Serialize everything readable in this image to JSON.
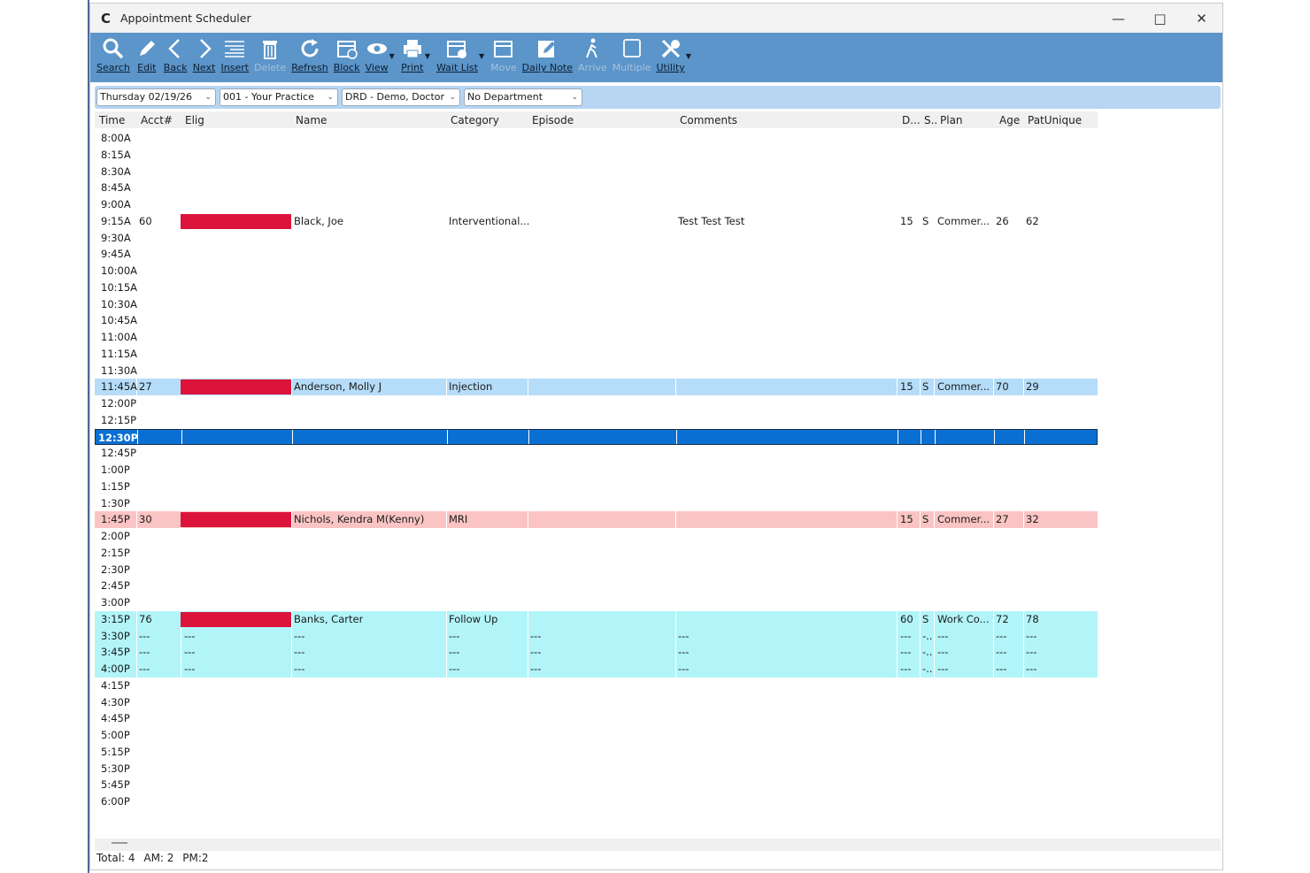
{
  "window": {
    "title": "Appointment Scheduler",
    "controls": [
      "minimize",
      "maximize",
      "close"
    ]
  },
  "toolbar": {
    "items": [
      {
        "label": "Search",
        "icon": "search-icon",
        "enabled": true
      },
      {
        "label": "Edit",
        "icon": "pencil-icon",
        "enabled": true
      },
      {
        "label": "Back",
        "icon": "chevron-left-icon",
        "enabled": true
      },
      {
        "label": "Next",
        "icon": "chevron-right-icon",
        "enabled": true
      },
      {
        "label": "Insert",
        "icon": "insert-lines-icon",
        "enabled": true
      },
      {
        "label": "Delete",
        "icon": "trash-icon",
        "enabled": false
      },
      {
        "label": "Refresh",
        "icon": "refresh-icon",
        "enabled": true
      },
      {
        "label": "Block",
        "icon": "calendar-block-icon",
        "enabled": true
      },
      {
        "label": "View",
        "icon": "eye-icon",
        "enabled": true,
        "dropdown": true
      },
      {
        "label": "Print",
        "icon": "printer-icon",
        "enabled": true,
        "dropdown": true
      },
      {
        "label": "Wait List",
        "icon": "calendar-clock-icon",
        "enabled": true,
        "dropdown": true
      },
      {
        "label": "Move",
        "icon": "calendar-move-icon",
        "enabled": false
      },
      {
        "label": "Daily Note",
        "icon": "note-edit-icon",
        "enabled": true
      },
      {
        "label": "Arrive",
        "icon": "walking-person-icon",
        "enabled": false
      },
      {
        "label": "Multiple",
        "icon": "multiple-pages-icon",
        "enabled": false
      },
      {
        "label": "Utility",
        "icon": "tools-icon",
        "enabled": true,
        "dropdown": true
      }
    ]
  },
  "filters": {
    "date": "Thursday 02/19/26",
    "practice": "001 - Your Practice",
    "provider": "DRD - Demo, Doctor",
    "department": "No Department"
  },
  "columns": [
    "Time",
    "Acct#",
    "Elig",
    "Name",
    "Category",
    "Episode",
    "Comments",
    "D...",
    "S..",
    "Plan",
    "Age",
    "PatUnique"
  ],
  "rows": [
    {
      "time": "8:00A"
    },
    {
      "time": "8:15A"
    },
    {
      "time": "8:30A"
    },
    {
      "time": "8:45A"
    },
    {
      "time": "9:00A"
    },
    {
      "time": "9:15A",
      "acct": "60",
      "elig": true,
      "name": "Black, Joe",
      "category": "Interventional...",
      "episode": "",
      "comments": "Test Test Test",
      "d": "15",
      "s": "S",
      "plan": "Commer...",
      "age": "26",
      "pat": "62",
      "style": "plain"
    },
    {
      "time": "9:30A"
    },
    {
      "time": "9:45A"
    },
    {
      "time": "10:00A"
    },
    {
      "time": "10:15A"
    },
    {
      "time": "10:30A"
    },
    {
      "time": "10:45A"
    },
    {
      "time": "11:00A"
    },
    {
      "time": "11:15A"
    },
    {
      "time": "11:30A"
    },
    {
      "time": "11:45A",
      "acct": "27",
      "elig": true,
      "name": "Anderson, Molly J",
      "category": "Injection",
      "episode": "",
      "comments": "",
      "d": "15",
      "s": "S",
      "plan": "Commer...",
      "age": "70",
      "pat": "29",
      "style": "blue"
    },
    {
      "time": "12:00P"
    },
    {
      "time": "12:15P"
    },
    {
      "time": "12:30P",
      "style": "sel"
    },
    {
      "time": "12:45P"
    },
    {
      "time": "1:00P"
    },
    {
      "time": "1:15P"
    },
    {
      "time": "1:30P"
    },
    {
      "time": "1:45P",
      "acct": "30",
      "elig": true,
      "name": "Nichols, Kendra M(Kenny)",
      "category": "MRI",
      "episode": "",
      "comments": "",
      "d": "15",
      "s": "S",
      "plan": "Commer...",
      "age": "27",
      "pat": "32",
      "style": "pink"
    },
    {
      "time": "2:00P"
    },
    {
      "time": "2:15P"
    },
    {
      "time": "2:30P"
    },
    {
      "time": "2:45P"
    },
    {
      "time": "3:00P"
    },
    {
      "time": "3:15P",
      "acct": "76",
      "elig": true,
      "name": "Banks, Carter",
      "category": "Follow Up",
      "episode": "",
      "comments": "",
      "d": "60",
      "s": "S",
      "plan": "Work Co...",
      "age": "72",
      "pat": "78",
      "style": "cyan"
    },
    {
      "time": "3:30P",
      "acct": "---",
      "elig_text": "---",
      "name": "---",
      "category": "---",
      "episode": "---",
      "comments": "---",
      "d": "---",
      "s": "-..",
      "plan": "---",
      "age": "---",
      "pat": "---",
      "style": "cyan"
    },
    {
      "time": "3:45P",
      "acct": "---",
      "elig_text": "---",
      "name": "---",
      "category": "---",
      "episode": "---",
      "comments": "---",
      "d": "---",
      "s": "-..",
      "plan": "---",
      "age": "---",
      "pat": "---",
      "style": "cyan"
    },
    {
      "time": "4:00P",
      "acct": "---",
      "elig_text": "---",
      "name": "---",
      "category": "---",
      "episode": "---",
      "comments": "---",
      "d": "---",
      "s": "-..",
      "plan": "---",
      "age": "---",
      "pat": "---",
      "style": "cyan"
    },
    {
      "time": "4:15P"
    },
    {
      "time": "4:30P"
    },
    {
      "time": "4:45P"
    },
    {
      "time": "5:00P"
    },
    {
      "time": "5:15P"
    },
    {
      "time": "5:30P"
    },
    {
      "time": "5:45P"
    },
    {
      "time": "6:00P"
    }
  ],
  "status": {
    "total": "Total: 4",
    "am": "AM: 2",
    "pm": "PM:2"
  },
  "colors": {
    "toolbar": "#5b95c9",
    "filterbar": "#b7d6f2",
    "elig_flag": "#dc143c",
    "selected_row": "#0a6fd3",
    "blue_row": "#b5dcf8",
    "pink_row": "#fbc4c4",
    "cyan_row": "#b2f5f9"
  }
}
